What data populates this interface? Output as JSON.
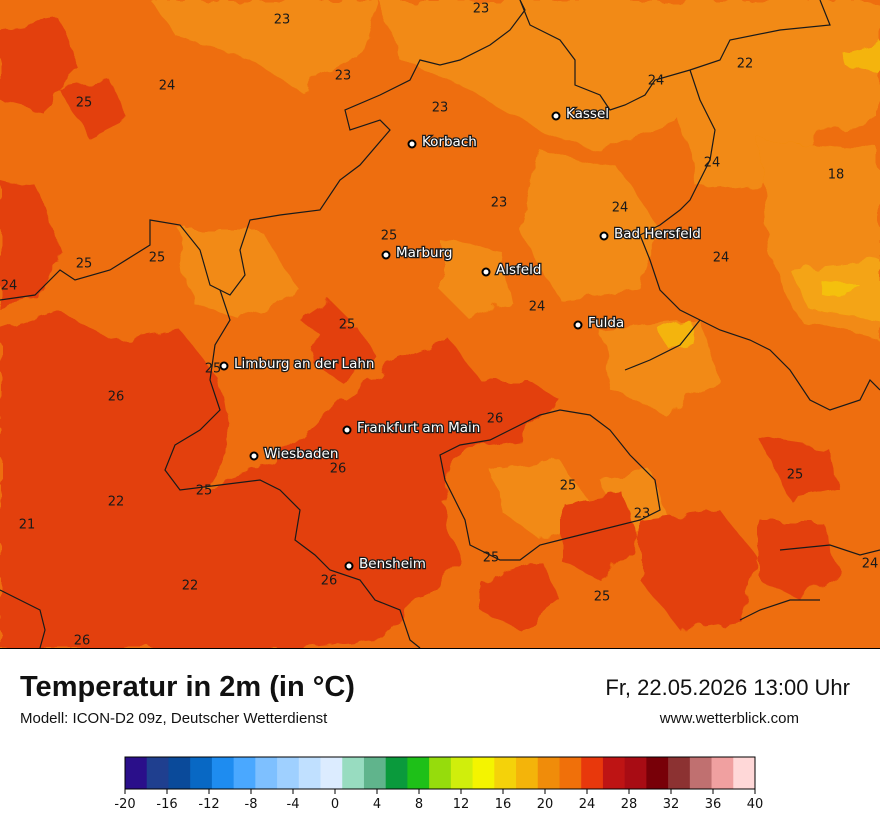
{
  "map": {
    "cities": [
      {
        "name": "Kassel"
      },
      {
        "name": "Korbach"
      },
      {
        "name": "Bad Hersfeld"
      },
      {
        "name": "Marburg"
      },
      {
        "name": "Alsfeld"
      },
      {
        "name": "Fulda"
      },
      {
        "name": "Limburg an der Lahn"
      },
      {
        "name": "Frankfurt am Main"
      },
      {
        "name": "Wiesbaden"
      },
      {
        "name": "Bensheim"
      }
    ],
    "values": [
      "23",
      "23",
      "24",
      "25",
      "23",
      "23",
      "22",
      "24",
      "23",
      "24",
      "25",
      "25",
      "25",
      "24",
      "24",
      "18",
      "24",
      "24",
      "25",
      "25",
      "26",
      "26",
      "26",
      "25",
      "22",
      "21",
      "23",
      "25",
      "25",
      "26",
      "22",
      "25",
      "24",
      "26",
      "25"
    ]
  },
  "footer": {
    "title": "Temperatur in 2m (in °C)",
    "model": "Modell: ICON-D2 09z, Deutscher Wetterdienst",
    "datetime": "Fr, 22.05.2026 13:00 Uhr",
    "site": "www.wetterblick.com"
  },
  "legend": {
    "ticks": [
      "-20",
      "-16",
      "-12",
      "-8",
      "-4",
      "0",
      "4",
      "8",
      "12",
      "16",
      "20",
      "24",
      "28",
      "32",
      "36",
      "40"
    ],
    "colors": [
      "#2a0f8a",
      "#1f3f8f",
      "#0a4a9a",
      "#0868c4",
      "#1e8cf0",
      "#4aa8ff",
      "#7ec0ff",
      "#9fd0ff",
      "#c0e0ff",
      "#dcecff",
      "#98dcc0",
      "#60b48c",
      "#0a9a3c",
      "#1ec018",
      "#96dc0c",
      "#d0ee0c",
      "#f4f400",
      "#f4d20a",
      "#f4b40a",
      "#f08c0a",
      "#f0700a",
      "#e8380c",
      "#be1414",
      "#a80c14",
      "#780008",
      "#8c3232",
      "#c07070",
      "#f0a0a0",
      "#ffd8d8"
    ],
    "colors_note_hidden": ""
  },
  "colors": {
    "base": "#ee6e0f",
    "light": "#f29012",
    "dark": "#e3410c",
    "pale": "#f4b010"
  }
}
